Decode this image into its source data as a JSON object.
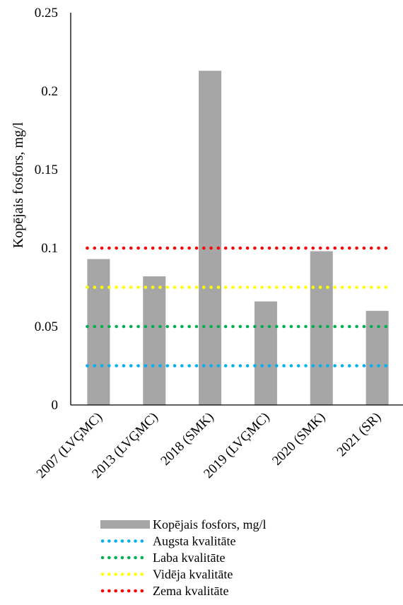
{
  "chart_data": {
    "type": "bar",
    "title": "",
    "xlabel": "",
    "ylabel": "Kopējais fosfors, mg/l",
    "ylim": [
      0,
      0.25
    ],
    "yticks": [
      "0",
      "0.05",
      "0.1",
      "0.15",
      "0.2",
      "0.25"
    ],
    "categories": [
      "2007 (LVĢMC)",
      "2013 (LVĢMC)",
      "2018 (SMK)",
      "2019 (LVĢMC)",
      "2020 (SMK)",
      "2021 (SR)"
    ],
    "series": [
      {
        "name": "Kopējais fosfors, mg/l",
        "kind": "bar",
        "color": "#a6a6a6",
        "values": [
          0.093,
          0.082,
          0.213,
          0.066,
          0.098,
          0.06
        ]
      }
    ],
    "reference_lines": [
      {
        "name": "Augsta kvalitāte",
        "value": 0.025,
        "color": "#00b0f0",
        "style": "dotted"
      },
      {
        "name": "Laba kvalitāte",
        "value": 0.05,
        "color": "#00b050",
        "style": "dotted"
      },
      {
        "name": "Vidēja kvalitāte",
        "value": 0.075,
        "color": "#ffff00",
        "style": "dotted"
      },
      {
        "name": "Zema kvalitāte",
        "value": 0.1,
        "color": "#ff0000",
        "style": "dotted"
      }
    ],
    "grid": false,
    "legend_position": "bottom"
  }
}
